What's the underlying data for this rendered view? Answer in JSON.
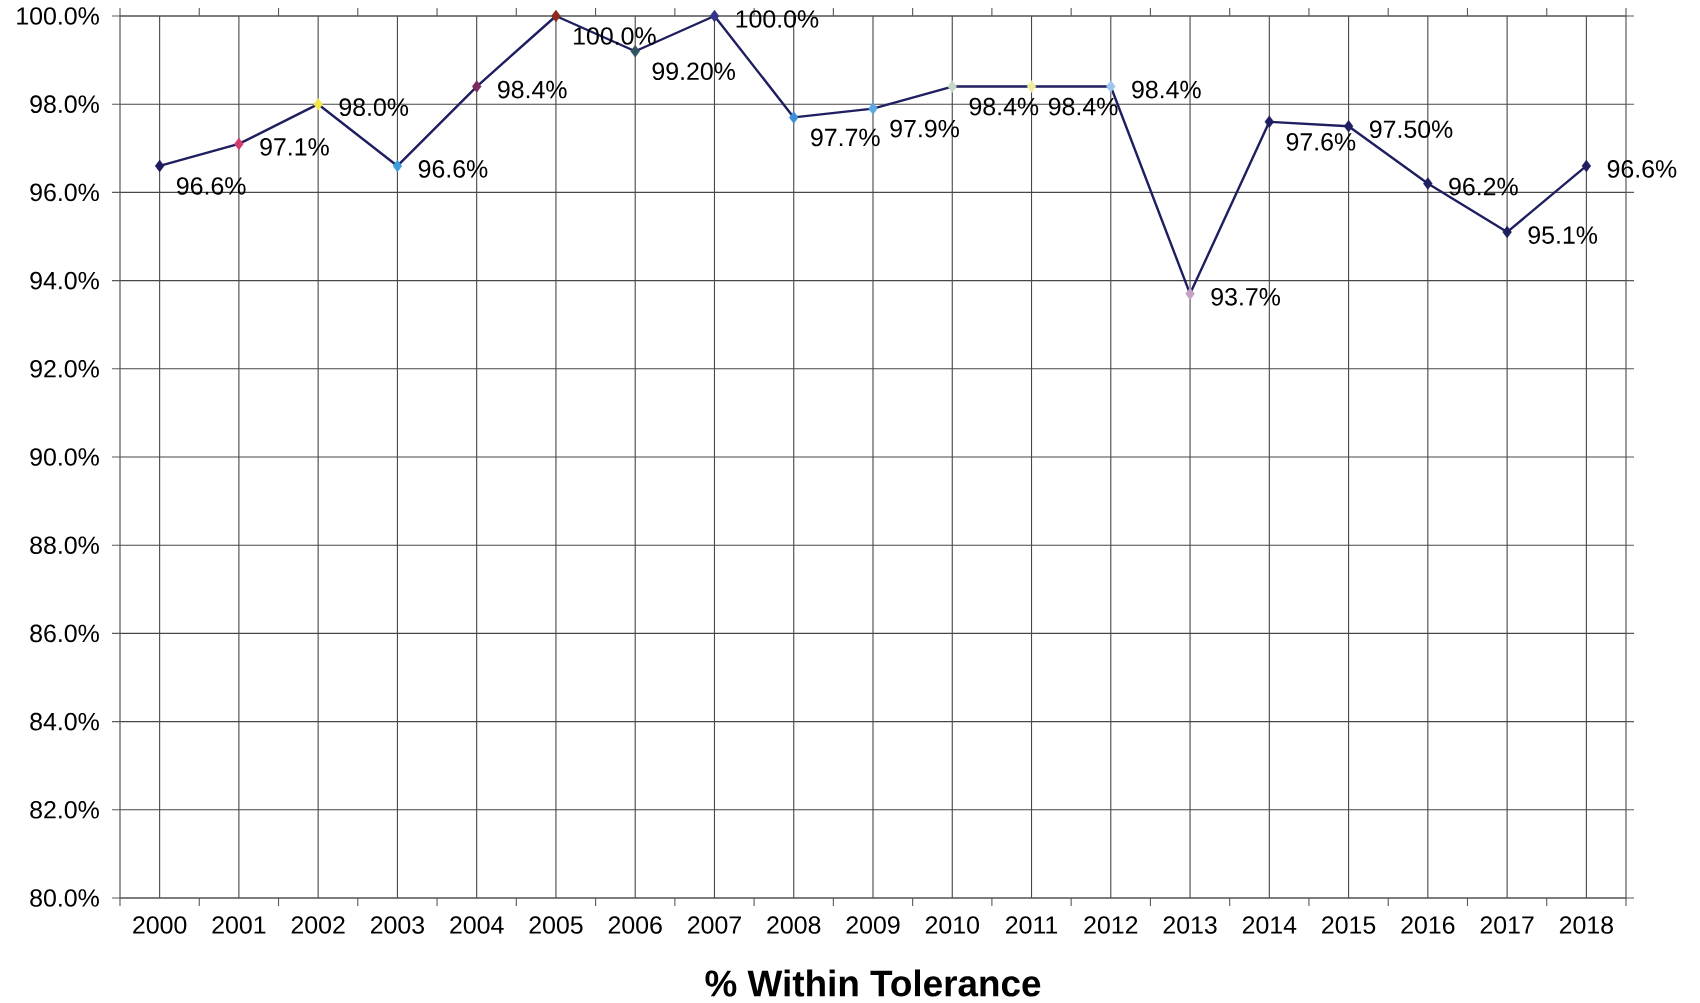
{
  "chart_data": {
    "type": "line",
    "title": "% Within Tolerance",
    "categories": [
      "2000",
      "2001",
      "2002",
      "2003",
      "2004",
      "2005",
      "2006",
      "2007",
      "2008",
      "2009",
      "2010",
      "2011",
      "2012",
      "2013",
      "2014",
      "2015",
      "2016",
      "2017",
      "2018"
    ],
    "series": [
      {
        "color": "#1e1e60",
        "values": [
          96.6,
          97.1,
          98.0,
          96.6,
          98.4,
          100.0,
          99.2,
          100.0,
          97.7,
          97.9,
          98.4,
          98.4,
          98.4,
          93.7,
          97.6,
          97.5,
          96.2,
          95.1,
          96.6
        ],
        "colors": [
          "#1c1c5e",
          "#d23c6e",
          "#f2e84a",
          "#3c9fdc",
          "#7b2c5c",
          "#8a2b1e",
          "#2e5560",
          "#333388",
          "#3b8fd6",
          "#5aa8e4",
          "#c5d8c8",
          "#eeee9a",
          "#9cc6ee",
          "#c4a2c6",
          "#1e1e60",
          "#1e1e60",
          "#1e1e60",
          "#1e1e60",
          "#1e1e60"
        ],
        "value_labels": [
          "96.6%",
          "97.1%",
          "98.0%",
          "96.6%",
          "98.4%",
          "100.0%",
          "99.20%",
          "100.0%",
          "97.7%",
          "97.9%",
          "98.4%",
          "98.4%",
          "98.4%",
          "93.7%",
          "97.6%",
          "97.50%",
          "96.2%",
          "95.1%",
          "96.6%"
        ]
      }
    ],
    "ylim": [
      80,
      100
    ],
    "yticks": [
      {
        "value": 80,
        "label": "80.0%"
      },
      {
        "value": 82,
        "label": "82.0%"
      },
      {
        "value": 84,
        "label": "84.0%"
      },
      {
        "value": 86,
        "label": "86.0%"
      },
      {
        "value": 88,
        "label": "88.0%"
      },
      {
        "value": 90,
        "label": "90.0%"
      },
      {
        "value": 92,
        "label": "92.0%"
      },
      {
        "value": 94,
        "label": "94.0%"
      },
      {
        "value": 96,
        "label": "96.0%"
      },
      {
        "value": 98,
        "label": "98.0%"
      },
      {
        "value": 100,
        "label": "100.0%"
      }
    ],
    "grid": true,
    "marker": "diamond"
  }
}
